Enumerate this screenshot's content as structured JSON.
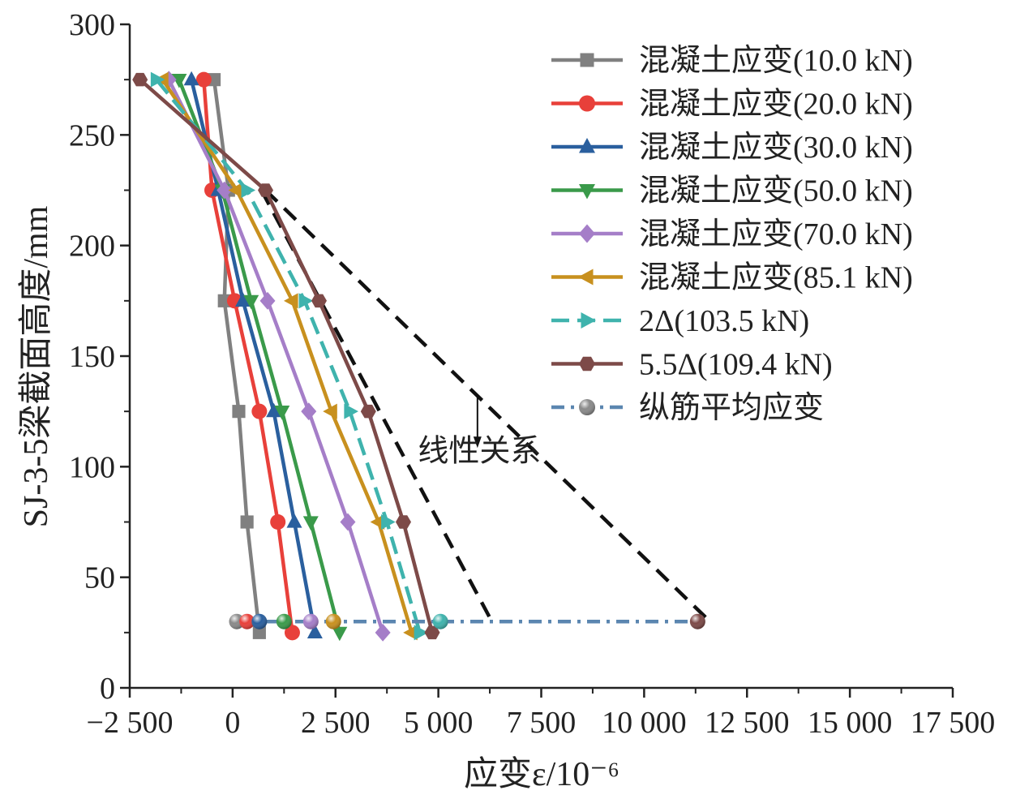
{
  "chart_data": {
    "type": "line",
    "xlabel": "应变ε/10⁻⁶",
    "ylabel": "SJ-3-5梁截面高度/mm",
    "xlim": [
      -2500,
      17500
    ],
    "ylim": [
      0,
      300
    ],
    "xticks": [
      -2500,
      0,
      2500,
      5000,
      7500,
      10000,
      12500,
      15000,
      17500
    ],
    "xtick_labels": [
      "−2 500",
      "0",
      "2 500",
      "5 000",
      "7 500",
      "10 000",
      "12 500",
      "15 000",
      "17 500"
    ],
    "yticks": [
      0,
      50,
      100,
      150,
      200,
      250,
      300
    ],
    "ytick_labels": [
      "0",
      "50",
      "100",
      "150",
      "200",
      "250",
      "300"
    ],
    "grid": false,
    "legend_position": "top-right",
    "series": [
      {
        "name": "混凝土应变(10.0 kN)",
        "color": "#808080",
        "marker": "square",
        "points": [
          [
            -450,
            275
          ],
          [
            -100,
            225
          ],
          [
            -200,
            175
          ],
          [
            150,
            125
          ],
          [
            350,
            75
          ],
          [
            650,
            25
          ]
        ]
      },
      {
        "name": "混凝土应变(20.0 kN)",
        "color": "#e8403a",
        "marker": "circle",
        "points": [
          [
            -700,
            275
          ],
          [
            -500,
            225
          ],
          [
            50,
            175
          ],
          [
            650,
            125
          ],
          [
            1100,
            75
          ],
          [
            1450,
            25
          ]
        ]
      },
      {
        "name": "混凝土应变(30.0 kN)",
        "color": "#2a5f9e",
        "marker": "triangle-up",
        "points": [
          [
            -1000,
            275
          ],
          [
            -350,
            225
          ],
          [
            250,
            175
          ],
          [
            1000,
            125
          ],
          [
            1500,
            75
          ],
          [
            2000,
            25
          ]
        ]
      },
      {
        "name": "混凝土应变(50.0 kN)",
        "color": "#3a9a4a",
        "marker": "triangle-down",
        "points": [
          [
            -1300,
            275
          ],
          [
            -250,
            225
          ],
          [
            450,
            175
          ],
          [
            1200,
            125
          ],
          [
            1900,
            75
          ],
          [
            2600,
            25
          ]
        ]
      },
      {
        "name": "混凝土应变(70.0 kN)",
        "color": "#a57ec8",
        "marker": "diamond",
        "points": [
          [
            -1550,
            275
          ],
          [
            -200,
            225
          ],
          [
            850,
            175
          ],
          [
            1850,
            125
          ],
          [
            2800,
            75
          ],
          [
            3650,
            25
          ]
        ]
      },
      {
        "name": "混凝土应变(85.1 kN)",
        "color": "#c8901e",
        "marker": "triangle-left",
        "points": [
          [
            -1700,
            275
          ],
          [
            100,
            225
          ],
          [
            1450,
            175
          ],
          [
            2400,
            125
          ],
          [
            3550,
            75
          ],
          [
            4350,
            25
          ]
        ]
      },
      {
        "name": "2Δ(103.5 kN)",
        "color": "#3fb3ad",
        "marker": "triangle-right",
        "dash": true,
        "points": [
          [
            -1850,
            275
          ],
          [
            350,
            225
          ],
          [
            1750,
            175
          ],
          [
            2850,
            125
          ],
          [
            3750,
            75
          ],
          [
            4550,
            25
          ]
        ]
      },
      {
        "name": "5.5Δ(109.4 kN)",
        "color": "#7d4a48",
        "marker": "hexagon",
        "points": [
          [
            -2250,
            275
          ],
          [
            800,
            225
          ],
          [
            2100,
            175
          ],
          [
            3300,
            125
          ],
          [
            4150,
            75
          ],
          [
            4850,
            25
          ]
        ]
      },
      {
        "name": "纵筋平均应变",
        "color": "#5b86b0",
        "marker": "sphere",
        "dashdot": true,
        "points": [
          [
            100,
            30
          ],
          [
            350,
            30
          ],
          [
            650,
            30
          ],
          [
            1250,
            30
          ],
          [
            1900,
            30
          ],
          [
            2450,
            30
          ],
          [
            5050,
            30
          ],
          [
            11300,
            30
          ]
        ],
        "point_colors": [
          "#8a8a8a",
          "#e8403a",
          "#2a5f9e",
          "#3a9a4a",
          "#a57ec8",
          "#c8901e",
          "#3fb3ad",
          "#7d4a48"
        ]
      }
    ],
    "reference_lines": [
      {
        "points": [
          [
            700,
            225
          ],
          [
            6300,
            30
          ]
        ]
      },
      {
        "points": [
          [
            800,
            225
          ],
          [
            11600,
            30
          ]
        ]
      }
    ],
    "annotations": [
      {
        "text": "线性关系",
        "x": 6000,
        "y": 100,
        "arrow_from": [
          5950,
          130
        ],
        "arrow_to": [
          5950,
          118
        ]
      }
    ]
  }
}
